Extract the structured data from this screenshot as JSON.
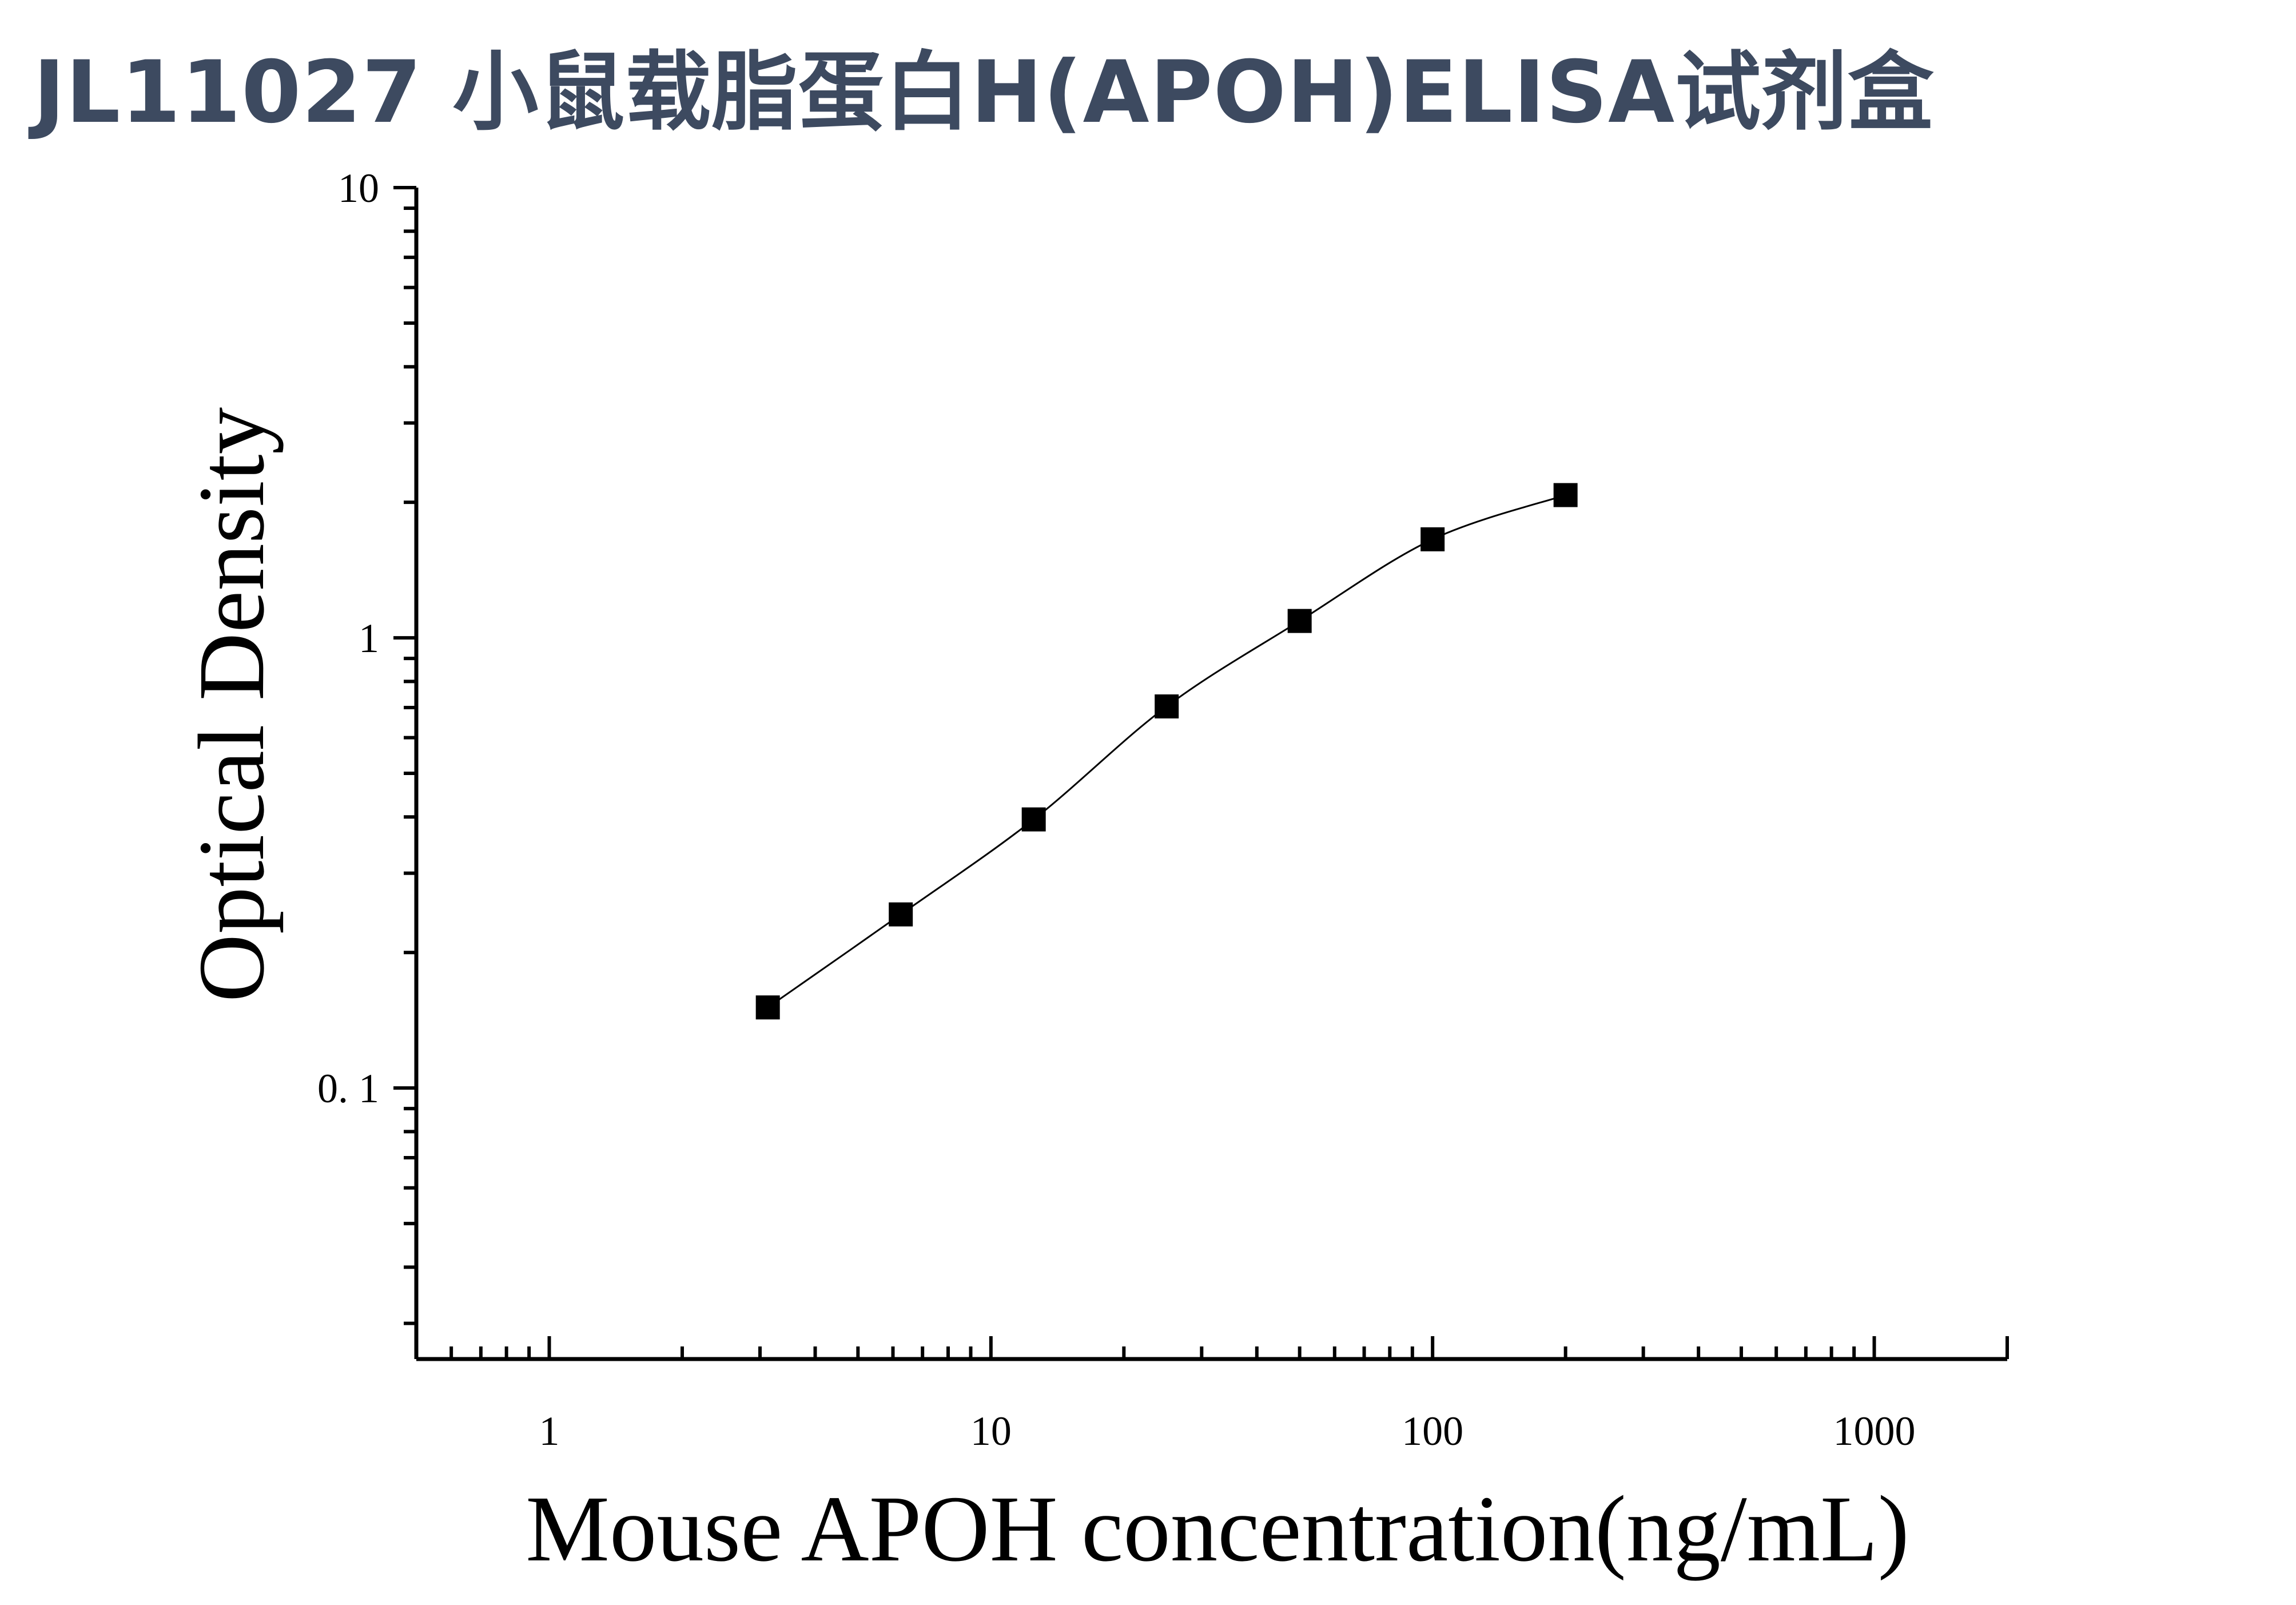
{
  "title": "JL11027 小鼠载脂蛋白H(APOH)ELISA试剂盒",
  "chart_data": {
    "type": "scatter",
    "title": "JL11027 小鼠载脂蛋白H(APOH)ELISA试剂盒",
    "xlabel": "Mouse APOH concentration(ng/mL)",
    "ylabel": "Optical Density",
    "x_scale": "log",
    "y_scale": "log",
    "xlim": [
      0.5,
      2000
    ],
    "ylim": [
      0.025,
      10
    ],
    "x_ticks": [
      {
        "value": 1,
        "label": "1"
      },
      {
        "value": 10,
        "label": "10"
      },
      {
        "value": 100,
        "label": "100"
      },
      {
        "value": 1000,
        "label": "1000"
      }
    ],
    "y_ticks": [
      {
        "value": 0.1,
        "label": "0. 1"
      },
      {
        "value": 1,
        "label": "1"
      },
      {
        "value": 10,
        "label": "10"
      }
    ],
    "grid": false,
    "marker": "square",
    "fit_line": true,
    "colors": {
      "marker": "#000000",
      "line": "#000000",
      "title": "#3d4a60"
    },
    "points": [
      {
        "x": 3.125,
        "y": 0.151
      },
      {
        "x": 6.25,
        "y": 0.243
      },
      {
        "x": 12.5,
        "y": 0.395
      },
      {
        "x": 25,
        "y": 0.704
      },
      {
        "x": 50,
        "y": 1.09
      },
      {
        "x": 100,
        "y": 1.655
      },
      {
        "x": 200,
        "y": 2.075
      }
    ]
  }
}
